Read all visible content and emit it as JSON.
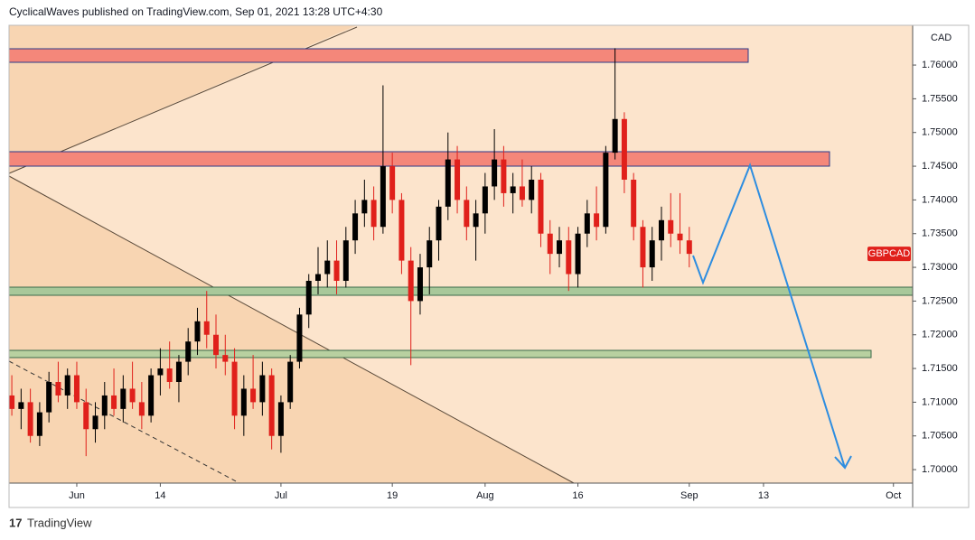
{
  "header": "CyclicalWaves published on TradingView.com, Sep 01, 2021 13:28 UTC+4:30",
  "footer": "TradingView",
  "chart_data": {
    "type": "candlestick",
    "symbol": "GBPCAD",
    "currency": "CAD",
    "up_color": "#000000",
    "down_color": "#e0201b",
    "xlim": [
      -7.3,
      90.07
    ],
    "ylim": [
      1.698,
      1.7659
    ],
    "xticks": [
      {
        "value": 0,
        "label": "Jun"
      },
      {
        "value": 9,
        "label": "14"
      },
      {
        "value": 22,
        "label": "Jul"
      },
      {
        "value": 34,
        "label": "19"
      },
      {
        "value": 44,
        "label": "Aug"
      },
      {
        "value": 54,
        "label": "16"
      },
      {
        "value": 66,
        "label": "Sep"
      },
      {
        "value": 74,
        "label": "13"
      },
      {
        "value": 88,
        "label": "Oct"
      }
    ],
    "yticks": [
      {
        "value": 1.7,
        "label": "1.70000"
      },
      {
        "value": 1.705,
        "label": "1.70500"
      },
      {
        "value": 1.71,
        "label": "1.71000"
      },
      {
        "value": 1.715,
        "label": "1.71500"
      },
      {
        "value": 1.72,
        "label": "1.72000"
      },
      {
        "value": 1.725,
        "label": "1.72500"
      },
      {
        "value": 1.73,
        "label": "1.73000"
      },
      {
        "value": 1.735,
        "label": "1.73500"
      },
      {
        "value": 1.74,
        "label": "1.74000"
      },
      {
        "value": 1.745,
        "label": "1.74500"
      },
      {
        "value": 1.75,
        "label": "1.75000"
      },
      {
        "value": 1.755,
        "label": "1.75500"
      },
      {
        "value": 1.76,
        "label": "1.76000"
      }
    ],
    "x": [
      -7,
      -6,
      -5,
      -4,
      -3,
      -2,
      -1,
      0,
      1,
      2,
      3,
      4,
      5,
      6,
      7,
      8,
      9,
      10,
      11,
      12,
      13,
      14,
      15,
      16,
      17,
      18,
      19,
      20,
      21,
      22,
      23,
      24,
      25,
      26,
      27,
      28,
      29,
      30,
      31,
      32,
      33,
      34,
      35,
      36,
      37,
      38,
      39,
      40,
      41,
      42,
      43,
      44,
      45,
      46,
      47,
      48,
      49,
      50,
      51,
      52,
      53,
      54,
      55,
      56,
      57,
      58,
      59,
      60,
      61,
      62,
      63,
      64,
      65,
      66
    ],
    "candles": [
      [
        1.711,
        1.714,
        1.708,
        1.709
      ],
      [
        1.709,
        1.712,
        1.706,
        1.71
      ],
      [
        1.71,
        1.712,
        1.704,
        1.705
      ],
      [
        1.705,
        1.71,
        1.7035,
        1.7085
      ],
      [
        1.7085,
        1.7145,
        1.707,
        1.713
      ],
      [
        1.713,
        1.716,
        1.71,
        1.711
      ],
      [
        1.711,
        1.715,
        1.709,
        1.714
      ],
      [
        1.714,
        1.716,
        1.709,
        1.71
      ],
      [
        1.71,
        1.712,
        1.702,
        1.706
      ],
      [
        1.706,
        1.71,
        1.704,
        1.708
      ],
      [
        1.708,
        1.713,
        1.706,
        1.711
      ],
      [
        1.711,
        1.715,
        1.708,
        1.709
      ],
      [
        1.709,
        1.714,
        1.707,
        1.712
      ],
      [
        1.712,
        1.716,
        1.709,
        1.71
      ],
      [
        1.71,
        1.713,
        1.706,
        1.708
      ],
      [
        1.708,
        1.715,
        1.707,
        1.714
      ],
      [
        1.714,
        1.718,
        1.711,
        1.715
      ],
      [
        1.715,
        1.719,
        1.712,
        1.713
      ],
      [
        1.713,
        1.717,
        1.71,
        1.716
      ],
      [
        1.716,
        1.721,
        1.714,
        1.719
      ],
      [
        1.719,
        1.724,
        1.717,
        1.722
      ],
      [
        1.722,
        1.7265,
        1.718,
        1.72
      ],
      [
        1.72,
        1.723,
        1.715,
        1.717
      ],
      [
        1.717,
        1.72,
        1.714,
        1.716
      ],
      [
        1.716,
        1.718,
        1.706,
        1.708
      ],
      [
        1.708,
        1.714,
        1.705,
        1.712
      ],
      [
        1.712,
        1.717,
        1.709,
        1.71
      ],
      [
        1.71,
        1.716,
        1.708,
        1.714
      ],
      [
        1.714,
        1.715,
        1.703,
        1.705
      ],
      [
        1.705,
        1.711,
        1.7025,
        1.71
      ],
      [
        1.71,
        1.717,
        1.709,
        1.716
      ],
      [
        1.716,
        1.724,
        1.715,
        1.723
      ],
      [
        1.723,
        1.729,
        1.721,
        1.728
      ],
      [
        1.728,
        1.733,
        1.726,
        1.729
      ],
      [
        1.729,
        1.734,
        1.727,
        1.731
      ],
      [
        1.731,
        1.734,
        1.726,
        1.728
      ],
      [
        1.728,
        1.736,
        1.727,
        1.734
      ],
      [
        1.734,
        1.74,
        1.732,
        1.738
      ],
      [
        1.738,
        1.743,
        1.736,
        1.74
      ],
      [
        1.74,
        1.742,
        1.734,
        1.736
      ],
      [
        1.736,
        1.757,
        1.735,
        1.745
      ],
      [
        1.745,
        1.747,
        1.738,
        1.74
      ],
      [
        1.74,
        1.741,
        1.729,
        1.731
      ],
      [
        1.731,
        1.733,
        1.7155,
        1.725
      ],
      [
        1.725,
        1.732,
        1.723,
        1.73
      ],
      [
        1.73,
        1.736,
        1.726,
        1.734
      ],
      [
        1.734,
        1.74,
        1.731,
        1.739
      ],
      [
        1.739,
        1.75,
        1.737,
        1.746
      ],
      [
        1.746,
        1.748,
        1.738,
        1.74
      ],
      [
        1.74,
        1.742,
        1.734,
        1.736
      ],
      [
        1.736,
        1.74,
        1.731,
        1.738
      ],
      [
        1.738,
        1.744,
        1.735,
        1.742
      ],
      [
        1.742,
        1.7505,
        1.74,
        1.746
      ],
      [
        1.746,
        1.748,
        1.739,
        1.741
      ],
      [
        1.741,
        1.744,
        1.738,
        1.742
      ],
      [
        1.742,
        1.746,
        1.739,
        1.74
      ],
      [
        1.74,
        1.745,
        1.738,
        1.743
      ],
      [
        1.743,
        1.744,
        1.733,
        1.735
      ],
      [
        1.735,
        1.737,
        1.729,
        1.732
      ],
      [
        1.732,
        1.736,
        1.73,
        1.734
      ],
      [
        1.734,
        1.736,
        1.7265,
        1.729
      ],
      [
        1.729,
        1.736,
        1.727,
        1.735
      ],
      [
        1.735,
        1.74,
        1.733,
        1.738
      ],
      [
        1.738,
        1.742,
        1.734,
        1.736
      ],
      [
        1.736,
        1.748,
        1.735,
        1.747
      ],
      [
        1.747,
        1.7625,
        1.746,
        1.752
      ],
      [
        1.752,
        1.753,
        1.741,
        1.743
      ],
      [
        1.743,
        1.744,
        1.734,
        1.736
      ],
      [
        1.736,
        1.737,
        1.727,
        1.73
      ],
      [
        1.73,
        1.736,
        1.728,
        1.734
      ],
      [
        1.734,
        1.739,
        1.731,
        1.737
      ],
      [
        1.737,
        1.741,
        1.733,
        1.735
      ],
      [
        1.735,
        1.741,
        1.732,
        1.734
      ],
      [
        1.734,
        1.736,
        1.73,
        1.732
      ]
    ]
  }
}
